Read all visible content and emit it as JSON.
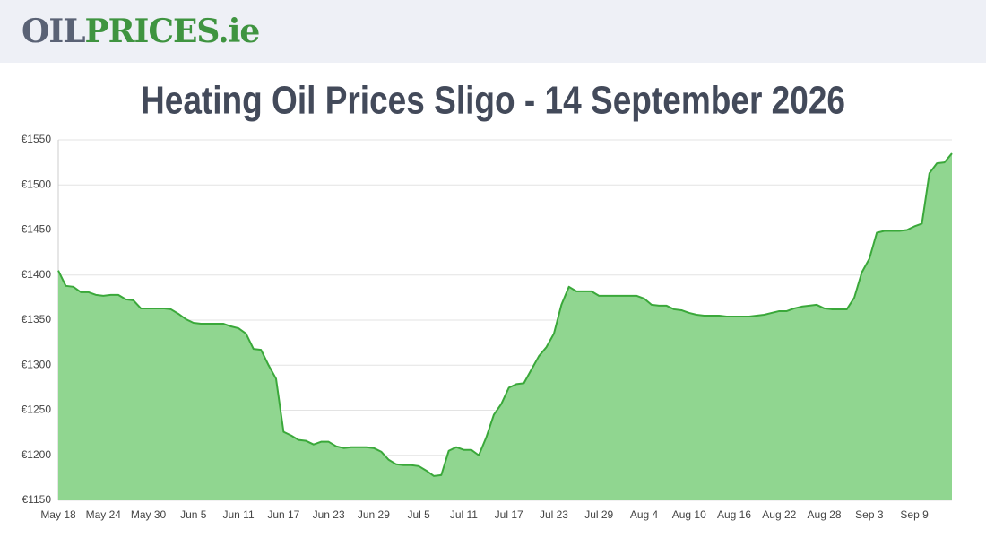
{
  "header": {
    "logo": [
      "OIL",
      "PRICES",
      ".ie"
    ]
  },
  "chart_data": {
    "type": "area",
    "title": "Heating Oil Prices Sligo - 14 September 2026",
    "categories": [
      "May 18",
      null,
      null,
      null,
      null,
      null,
      "May 24",
      null,
      null,
      null,
      null,
      null,
      "May 30",
      null,
      null,
      null,
      null,
      null,
      "Jun 5",
      null,
      null,
      null,
      null,
      null,
      "Jun 11",
      null,
      null,
      null,
      null,
      null,
      "Jun 17",
      null,
      null,
      null,
      null,
      null,
      "Jun 23",
      null,
      null,
      null,
      null,
      null,
      "Jun 29",
      null,
      null,
      null,
      null,
      null,
      "Jul 5",
      null,
      null,
      null,
      null,
      null,
      "Jul 11",
      null,
      null,
      null,
      null,
      null,
      "Jul 17",
      null,
      null,
      null,
      null,
      null,
      "Jul 23",
      null,
      null,
      null,
      null,
      null,
      "Jul 29",
      null,
      null,
      null,
      null,
      null,
      "Aug 4",
      null,
      null,
      null,
      null,
      null,
      "Aug 10",
      null,
      null,
      null,
      null,
      null,
      "Aug 16",
      null,
      null,
      null,
      null,
      null,
      "Aug 22",
      null,
      null,
      null,
      null,
      null,
      "Aug 28",
      null,
      null,
      null,
      null,
      null,
      "Sep 3",
      null,
      null,
      null,
      null,
      null,
      "Sep 9",
      null,
      null,
      null,
      null,
      null
    ],
    "values": [
      1405,
      1388,
      1387,
      1381,
      1381,
      1378,
      1377,
      1378,
      1378,
      1373,
      1372,
      1363,
      1363,
      1363,
      1363,
      1362,
      1357,
      1351,
      1347,
      1346,
      1346,
      1346,
      1346,
      1343,
      1341,
      1335,
      1318,
      1317,
      1300,
      1285,
      1226,
      1222,
      1217,
      1216,
      1212,
      1215,
      1215,
      1210,
      1208,
      1209,
      1209,
      1209,
      1208,
      1204,
      1195,
      1190,
      1189,
      1189,
      1188,
      1183,
      1177,
      1178,
      1205,
      1209,
      1206,
      1206,
      1200,
      1220,
      1245,
      1257,
      1275,
      1279,
      1280,
      1295,
      1310,
      1320,
      1335,
      1367,
      1387,
      1382,
      1382,
      1382,
      1377,
      1377,
      1377,
      1377,
      1377,
      1377,
      1374,
      1367,
      1366,
      1366,
      1362,
      1361,
      1358,
      1356,
      1355,
      1355,
      1355,
      1354,
      1354,
      1354,
      1354,
      1355,
      1356,
      1358,
      1360,
      1360,
      1363,
      1365,
      1366,
      1367,
      1363,
      1362,
      1362,
      1362,
      1375,
      1403,
      1418,
      1447,
      1449,
      1449,
      1449,
      1450,
      1454,
      1457,
      1513,
      1524,
      1525,
      1535
    ],
    "color": "#3aa83a",
    "fill": "#90d690",
    "ylim": [
      1150,
      1550
    ],
    "yticks": [
      {
        "value": 1150,
        "label": "€1150"
      },
      {
        "value": 1200,
        "label": "€1200"
      },
      {
        "value": 1250,
        "label": "€1250"
      },
      {
        "value": 1300,
        "label": "€1300"
      },
      {
        "value": 1350,
        "label": "€1350"
      },
      {
        "value": 1400,
        "label": "€1400"
      },
      {
        "value": 1450,
        "label": "€1450"
      },
      {
        "value": 1500,
        "label": "€1500"
      },
      {
        "value": 1550,
        "label": "€1550"
      }
    ],
    "grid": true
  }
}
